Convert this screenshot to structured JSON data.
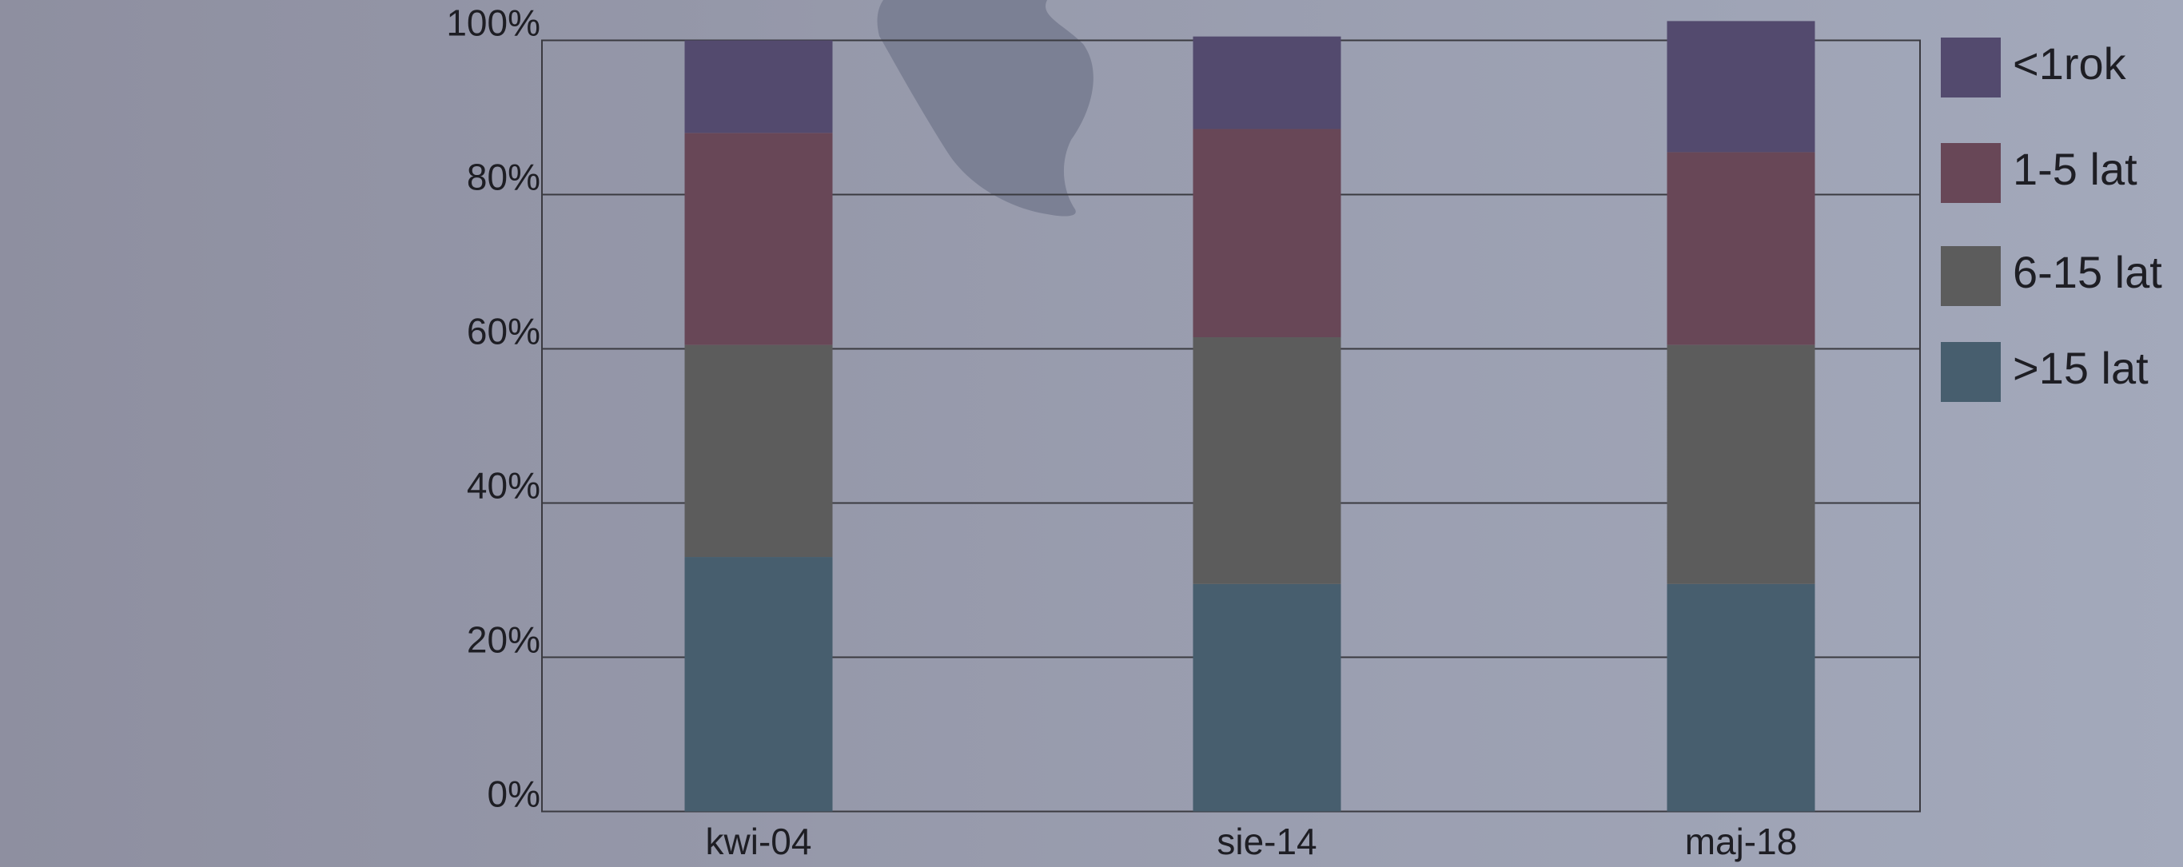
{
  "chart_data": {
    "type": "stacked_bar",
    "categories": [
      "kwi-04",
      "sie-14",
      "maj-18"
    ],
    "series": [
      {
        "name": ">15 lat",
        "color": "#475e6e",
        "values": [
          33,
          29.5,
          29.5
        ]
      },
      {
        "name": "6-15 lat",
        "color": "#5c5c5c",
        "values": [
          27.5,
          32,
          31
        ]
      },
      {
        "name": "1-5 lat",
        "color": "#684757",
        "values": [
          27.5,
          27,
          25
        ]
      },
      {
        "name": "<1rok",
        "color": "#534a6e",
        "values": [
          12,
          12,
          17
        ]
      }
    ],
    "ylim": [
      0,
      100
    ],
    "yticks": [
      {
        "value": 0,
        "label": "0%"
      },
      {
        "value": 20,
        "label": "20%"
      },
      {
        "value": 40,
        "label": "40%"
      },
      {
        "value": 60,
        "label": "60%"
      },
      {
        "value": 80,
        "label": "80%"
      },
      {
        "value": 100,
        "label": "100%"
      }
    ],
    "grid": true,
    "legend": "right"
  }
}
